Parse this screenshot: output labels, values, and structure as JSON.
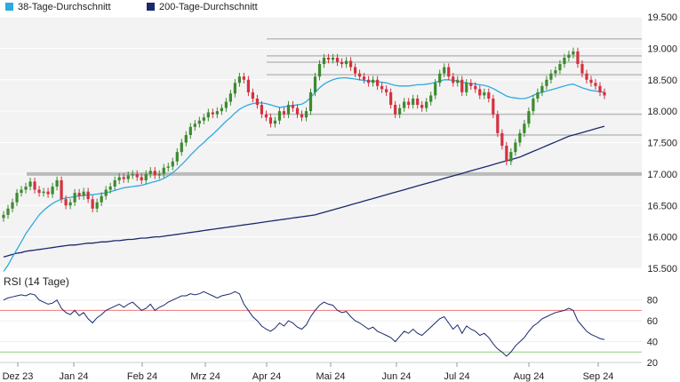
{
  "colors": {
    "ma38": "#2eaadf",
    "ma200": "#1a2a6c",
    "up": "#3c8a2e",
    "down": "#d5303e",
    "rsi_line": "#1a2a6c",
    "rsi_upper": "#ee7a7a",
    "rsi_lower": "#8fce7f",
    "plot_bg": "#f3f3f3",
    "resistance": "#bbbbbb"
  },
  "legend": [
    {
      "label": "38-Tage-Durchschnitt",
      "color": "#2eaadf"
    },
    {
      "label": "200-Tage-Durchschnitt",
      "color": "#1a2a6c"
    }
  ],
  "chart_data": [
    {
      "type": "candlestick",
      "title": "",
      "ylim": [
        15.5,
        19.5
      ],
      "y_ticks": [
        "15.500",
        "16.000",
        "16.500",
        "17.000",
        "17.500",
        "18.000",
        "18.500",
        "19.000",
        "19.500"
      ],
      "x_tick_labels": [
        "Dez 23",
        "Jan 24",
        "Feb 24",
        "Mrz 24",
        "Apr 24",
        "Mai 24",
        "Jun 24",
        "Jul 24",
        "Aug 24",
        "Sep 24"
      ],
      "horizontal_lines": [
        19.15,
        18.88,
        18.78,
        18.58,
        17.95,
        17.62,
        17.0
      ],
      "close": [
        16.35,
        16.45,
        16.55,
        16.7,
        16.75,
        16.8,
        16.88,
        16.75,
        16.7,
        16.72,
        16.68,
        16.8,
        16.9,
        16.6,
        16.5,
        16.55,
        16.7,
        16.65,
        16.72,
        16.6,
        16.45,
        16.55,
        16.65,
        16.75,
        16.8,
        16.9,
        16.95,
        16.92,
        16.98,
        17.0,
        16.95,
        16.9,
        17.0,
        17.05,
        16.98,
        17.0,
        17.1,
        17.12,
        17.2,
        17.35,
        17.5,
        17.62,
        17.75,
        17.8,
        17.85,
        17.9,
        17.98,
        17.95,
        18.0,
        18.05,
        18.15,
        18.28,
        18.45,
        18.55,
        18.5,
        18.3,
        18.2,
        18.1,
        17.95,
        17.9,
        17.8,
        17.85,
        18.0,
        17.95,
        18.1,
        18.05,
        17.95,
        17.9,
        18.0,
        18.3,
        18.55,
        18.75,
        18.85,
        18.82,
        18.85,
        18.78,
        18.75,
        18.8,
        18.7,
        18.6,
        18.55,
        18.5,
        18.45,
        18.5,
        18.4,
        18.35,
        18.3,
        18.1,
        17.95,
        18.05,
        18.15,
        18.1,
        18.2,
        18.1,
        18.05,
        18.15,
        18.25,
        18.45,
        18.6,
        18.7,
        18.55,
        18.45,
        18.5,
        18.3,
        18.45,
        18.4,
        18.35,
        18.25,
        18.3,
        18.2,
        17.95,
        17.65,
        17.45,
        17.2,
        17.35,
        17.5,
        17.65,
        17.8,
        18.0,
        18.2,
        18.3,
        18.4,
        18.5,
        18.6,
        18.65,
        18.75,
        18.85,
        18.9,
        18.95,
        18.75,
        18.6,
        18.5,
        18.45,
        18.4,
        18.3,
        18.25
      ],
      "series": [
        {
          "name": "38-Tage-Durchschnitt",
          "values": [
            15.45,
            15.55,
            15.68,
            15.8,
            15.92,
            16.05,
            16.15,
            16.25,
            16.35,
            16.42,
            16.48,
            16.53,
            16.57,
            16.6,
            16.62,
            16.63,
            16.64,
            16.65,
            16.66,
            16.67,
            16.67,
            16.68,
            16.69,
            16.7,
            16.72,
            16.74,
            16.76,
            16.78,
            16.79,
            16.8,
            16.81,
            16.82,
            16.84,
            16.86,
            16.88,
            16.9,
            16.93,
            16.97,
            17.02,
            17.08,
            17.15,
            17.22,
            17.3,
            17.37,
            17.44,
            17.5,
            17.57,
            17.63,
            17.7,
            17.77,
            17.84,
            17.9,
            17.97,
            18.03,
            18.07,
            18.1,
            18.12,
            18.13,
            18.13,
            18.12,
            18.1,
            18.08,
            18.06,
            18.07,
            18.08,
            18.09,
            18.1,
            18.11,
            18.15,
            18.22,
            18.3,
            18.37,
            18.43,
            18.47,
            18.5,
            18.52,
            18.53,
            18.53,
            18.52,
            18.51,
            18.5,
            18.49,
            18.48,
            18.48,
            18.47,
            18.46,
            18.45,
            18.43,
            18.41,
            18.4,
            18.4,
            18.4,
            18.41,
            18.42,
            18.42,
            18.43,
            18.44,
            18.46,
            18.48,
            18.5,
            18.5,
            18.49,
            18.48,
            18.46,
            18.45,
            18.44,
            18.43,
            18.42,
            18.41,
            18.39,
            18.36,
            18.32,
            18.28,
            18.24,
            18.22,
            18.21,
            18.2,
            18.2,
            18.22,
            18.25,
            18.28,
            18.3,
            18.32,
            18.34,
            18.36,
            18.38,
            18.4,
            18.42,
            18.43,
            18.4,
            18.37,
            18.35,
            18.33,
            18.32,
            18.31,
            18.3
          ]
        },
        {
          "name": "200-Tage-Durchschnitt",
          "values": [
            15.68,
            15.7,
            15.72,
            15.74,
            15.75,
            15.77,
            15.78,
            15.79,
            15.8,
            15.81,
            15.82,
            15.83,
            15.84,
            15.85,
            15.86,
            15.87,
            15.87,
            15.88,
            15.89,
            15.9,
            15.9,
            15.91,
            15.92,
            15.92,
            15.93,
            15.94,
            15.94,
            15.95,
            15.96,
            15.96,
            15.97,
            15.98,
            15.98,
            15.99,
            16.0,
            16.0,
            16.01,
            16.02,
            16.03,
            16.04,
            16.05,
            16.06,
            16.07,
            16.08,
            16.09,
            16.1,
            16.11,
            16.12,
            16.13,
            16.14,
            16.15,
            16.16,
            16.17,
            16.18,
            16.19,
            16.2,
            16.21,
            16.22,
            16.23,
            16.24,
            16.25,
            16.26,
            16.27,
            16.28,
            16.29,
            16.3,
            16.31,
            16.32,
            16.33,
            16.34,
            16.35,
            16.37,
            16.39,
            16.41,
            16.43,
            16.45,
            16.47,
            16.49,
            16.51,
            16.53,
            16.55,
            16.57,
            16.59,
            16.61,
            16.63,
            16.65,
            16.67,
            16.69,
            16.71,
            16.73,
            16.75,
            16.77,
            16.79,
            16.81,
            16.83,
            16.85,
            16.87,
            16.89,
            16.91,
            16.93,
            16.95,
            16.97,
            16.99,
            17.01,
            17.03,
            17.05,
            17.07,
            17.09,
            17.11,
            17.13,
            17.15,
            17.17,
            17.19,
            17.21,
            17.23,
            17.25,
            17.27,
            17.3,
            17.33,
            17.36,
            17.39,
            17.42,
            17.45,
            17.48,
            17.51,
            17.54,
            17.57,
            17.6,
            17.62,
            17.64,
            17.66,
            17.68,
            17.7,
            17.72,
            17.74,
            17.76
          ]
        }
      ]
    },
    {
      "type": "line",
      "title": "RSI (14 Tage)",
      "ylim": [
        20,
        90
      ],
      "y_ticks": [
        "20",
        "40",
        "60",
        "80"
      ],
      "upper_band": 70,
      "lower_band": 30,
      "series": [
        {
          "name": "RSI",
          "values": [
            80,
            82,
            83,
            84,
            85,
            84,
            86,
            85,
            80,
            78,
            76,
            77,
            80,
            72,
            68,
            66,
            70,
            65,
            68,
            62,
            58,
            63,
            66,
            70,
            72,
            74,
            76,
            73,
            76,
            78,
            74,
            70,
            72,
            76,
            70,
            73,
            75,
            78,
            80,
            82,
            84,
            84,
            86,
            85,
            86,
            88,
            86,
            84,
            82,
            84,
            85,
            86,
            88,
            86,
            76,
            70,
            64,
            60,
            55,
            52,
            50,
            53,
            58,
            55,
            60,
            58,
            54,
            52,
            56,
            64,
            70,
            75,
            78,
            76,
            75,
            70,
            68,
            69,
            64,
            60,
            58,
            55,
            52,
            54,
            50,
            48,
            46,
            44,
            40,
            45,
            50,
            48,
            52,
            48,
            46,
            50,
            54,
            58,
            62,
            64,
            58,
            52,
            56,
            48,
            55,
            52,
            50,
            46,
            48,
            44,
            38,
            33,
            30,
            26,
            30,
            36,
            40,
            44,
            50,
            55,
            58,
            62,
            64,
            66,
            68,
            69,
            70,
            72,
            70,
            60,
            55,
            50,
            47,
            45,
            43,
            42
          ]
        }
      ]
    }
  ]
}
